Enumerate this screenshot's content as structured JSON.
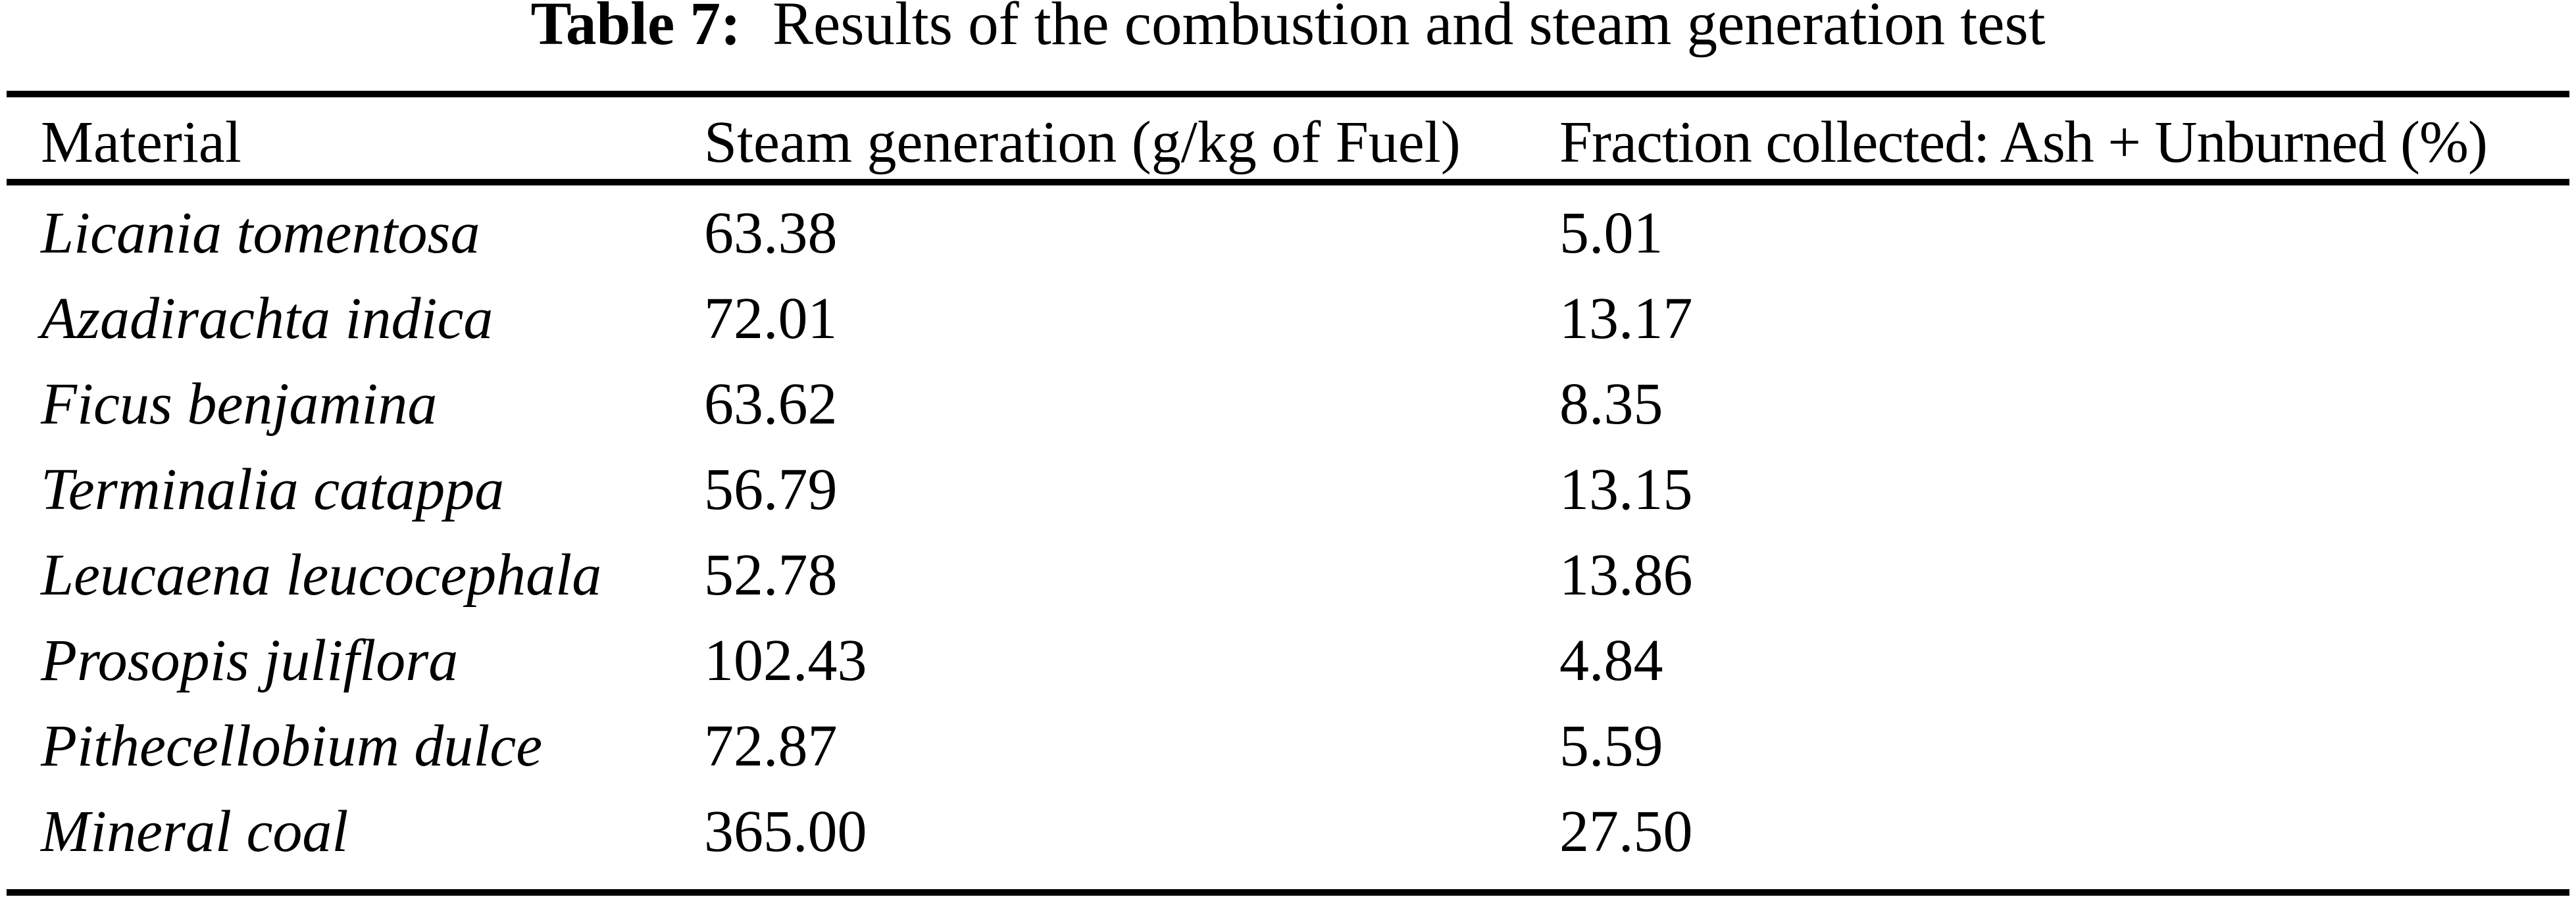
{
  "page": {
    "background_color": "#ffffff",
    "text_color": "#000000"
  },
  "title": {
    "label": "Table 7:",
    "text": "Results of the combustion and steam generation test"
  },
  "table": {
    "columns": [
      "Material",
      "Steam generation (g/kg of Fuel)",
      "Fraction collected: Ash + Unburned (%)"
    ],
    "rows": [
      {
        "material": "Licania tomentosa",
        "steam": "63.38",
        "fraction": "5.01"
      },
      {
        "material": "Azadirachta indica",
        "steam": "72.01",
        "fraction": "13.17"
      },
      {
        "material": "Ficus benjamina",
        "steam": "63.62",
        "fraction": "8.35"
      },
      {
        "material": "Terminalia catappa",
        "steam": "56.79",
        "fraction": "13.15"
      },
      {
        "material": "Leucaena leucocephala",
        "steam": "52.78",
        "fraction": "13.86"
      },
      {
        "material": "Prosopis juliflora",
        "steam": "102.43",
        "fraction": "4.84"
      },
      {
        "material": "Pithecellobium dulce",
        "steam": "72.87",
        "fraction": "5.59"
      },
      {
        "material": "Mineral coal",
        "steam": "365.00",
        "fraction": "27.50"
      }
    ]
  },
  "chart_data": {
    "type": "table",
    "title": "Table 7: Results of the combustion and steam generation test",
    "columns": [
      "Material",
      "Steam generation (g/kg of Fuel)",
      "Fraction collected: Ash + Unburned (%)"
    ],
    "rows": [
      [
        "Licania tomentosa",
        63.38,
        5.01
      ],
      [
        "Azadirachta indica",
        72.01,
        13.17
      ],
      [
        "Ficus benjamina",
        63.62,
        8.35
      ],
      [
        "Terminalia catappa",
        56.79,
        13.15
      ],
      [
        "Leucaena leucocephala",
        52.78,
        13.86
      ],
      [
        "Prosopis juliflora",
        102.43,
        4.84
      ],
      [
        "Pithecellobium dulce",
        72.87,
        5.59
      ],
      [
        "Mineral coal",
        365.0,
        27.5
      ]
    ]
  }
}
